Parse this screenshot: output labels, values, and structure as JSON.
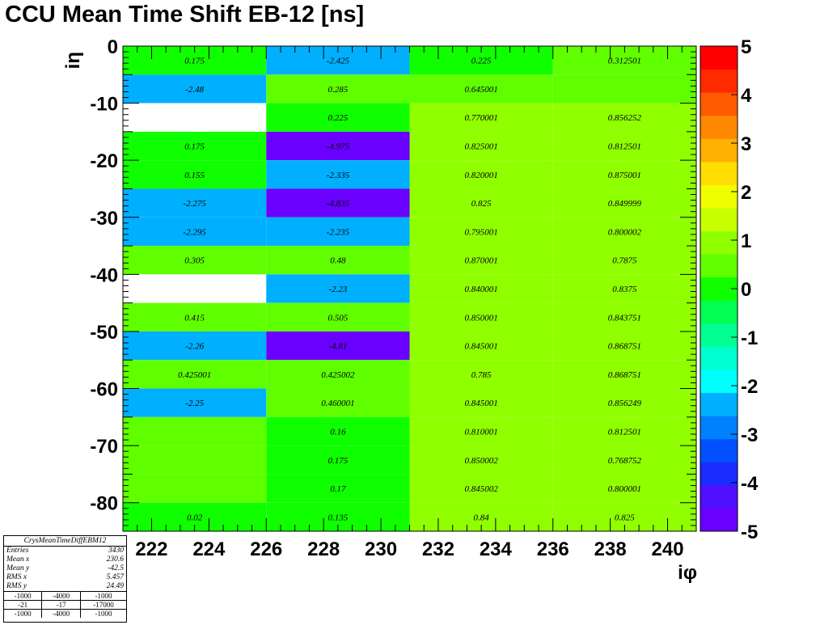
{
  "title": "CCU Mean Time Shift EB-12 [ns]",
  "chart_data": {
    "type": "heatmap",
    "title": "CCU Mean Time Shift EB-12 [ns]",
    "xlabel": "iφ",
    "ylabel": "iη",
    "xlim": [
      221,
      241
    ],
    "ylim": [
      -85,
      0
    ],
    "zlim": [
      -5,
      5
    ],
    "x_ticks": [
      "222",
      "224",
      "226",
      "228",
      "230",
      "232",
      "234",
      "236",
      "238",
      "240"
    ],
    "y_ticks": [
      "0",
      "-10",
      "-20",
      "-30",
      "-40",
      "-50",
      "-60",
      "-70",
      "-80"
    ],
    "z_ticks": [
      "5",
      "4",
      "3",
      "2",
      "1",
      "0",
      "-1",
      "-2",
      "-3",
      "-4",
      "-5"
    ],
    "x_bins": [
      221,
      226,
      231,
      236,
      241
    ],
    "y_bins": [
      0,
      -5,
      -10,
      -15,
      -20,
      -25,
      -30,
      -35,
      -40,
      -45,
      -50,
      -55,
      -60,
      -65,
      -70,
      -75,
      -80,
      -85
    ],
    "values": [
      [
        0.175,
        -2.425,
        0.225,
        0.312501
      ],
      [
        -2.48,
        0.285,
        0.645001,
        0.56
      ],
      [
        null,
        0.225,
        0.770001,
        0.856252
      ],
      [
        0.175,
        -4.975,
        0.825001,
        0.812501
      ],
      [
        0.155,
        -2.335,
        0.820001,
        0.875001
      ],
      [
        -2.275,
        -4.835,
        0.825,
        0.849999
      ],
      [
        -2.295,
        -2.235,
        0.795001,
        0.800002
      ],
      [
        0.305,
        0.48,
        0.870001,
        0.7875
      ],
      [
        null,
        -2.23,
        0.840001,
        0.8375
      ],
      [
        0.415,
        0.505,
        0.850001,
        0.843751
      ],
      [
        -2.26,
        -4.81,
        0.845001,
        0.868751
      ],
      [
        0.425001,
        0.425002,
        0.785,
        0.868751
      ],
      [
        -2.25,
        0.460001,
        0.845001,
        0.856249
      ],
      [
        0.3,
        0.16,
        0.810001,
        0.812501
      ],
      [
        0.3,
        0.175,
        0.850002,
        0.768752
      ],
      [
        0.3,
        0.17,
        0.845002,
        0.800001
      ],
      [
        0.02,
        0.135,
        0.84,
        0.825
      ]
    ],
    "labels": [
      [
        "0.175",
        "-2.425",
        "0.225",
        "0.312501"
      ],
      [
        "-2.48",
        "0.285",
        "0.645001",
        ""
      ],
      [
        "",
        "0.225",
        "0.770001",
        "0.856252"
      ],
      [
        "0.175",
        "-4.975",
        "0.825001",
        "0.812501"
      ],
      [
        "0.155",
        "-2.335",
        "0.820001",
        "0.875001"
      ],
      [
        "-2.275",
        "-4.835",
        "0.825",
        "0.849999"
      ],
      [
        "-2.295",
        "-2.235",
        "0.795001",
        "0.800002"
      ],
      [
        "0.305",
        "0.48",
        "0.870001",
        "0.7875"
      ],
      [
        "",
        "-2.23",
        "0.840001",
        "0.8375"
      ],
      [
        "0.415",
        "0.505",
        "0.850001",
        "0.843751"
      ],
      [
        "-2.26",
        "-4.81",
        "0.845001",
        "0.868751"
      ],
      [
        "0.425001",
        "0.425002",
        "0.785",
        "0.868751"
      ],
      [
        "-2.25",
        "0.460001",
        "0.845001",
        "0.856249"
      ],
      [
        "",
        "0.16",
        "0.810001",
        "0.812501"
      ],
      [
        "",
        "0.175",
        "0.850002",
        "0.768752"
      ],
      [
        "",
        "0.17",
        "0.845002",
        "0.800001"
      ],
      [
        "0.02",
        "0.135",
        "0.84",
        "0.825"
      ]
    ],
    "palette": [
      "#6a00ff",
      "#5010ff",
      "#1a2cff",
      "#0050ff",
      "#0080ff",
      "#00b0ff",
      "#00ffff",
      "#00ffd0",
      "#00ff90",
      "#00ff50",
      "#10ff00",
      "#60ff00",
      "#90ff00",
      "#c8ff00",
      "#f0ff00",
      "#ffdd00",
      "#ffb000",
      "#ff8800",
      "#ff5a00",
      "#ff2a00",
      "#ff0000"
    ]
  },
  "statbox": {
    "name": "CrysMeanTimeDiffEBM12",
    "rows": [
      {
        "label": "Entries",
        "value": "3430"
      },
      {
        "label": "Mean x",
        "value": "230.6"
      },
      {
        "label": "Mean y",
        "value": "-42.5"
      },
      {
        "label": "RMS x",
        "value": "5.457"
      },
      {
        "label": "RMS y",
        "value": "24.49"
      }
    ],
    "grid": [
      [
        "-1000",
        "-4000",
        "-1000"
      ],
      [
        "-21",
        "-17",
        "-17000"
      ],
      [
        "-1000",
        "-4000",
        "-1000"
      ]
    ]
  }
}
